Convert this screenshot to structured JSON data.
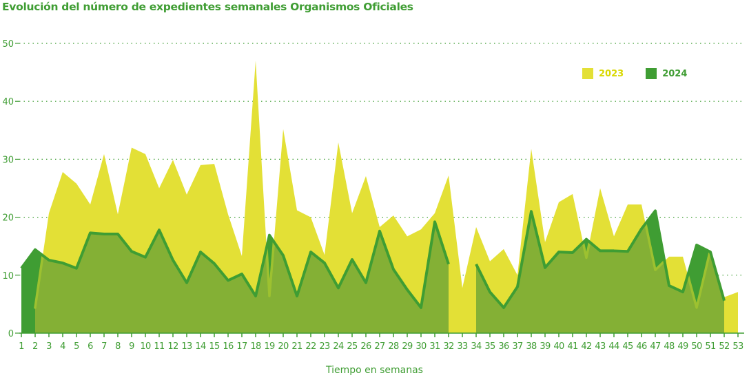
{
  "title": "Evolución del número de expedientes semanales  Organismos Oficiales",
  "colors": {
    "y2023": "#e3e036",
    "y2024": "#3f9d33",
    "overlap": "#84b035",
    "text": "#3f9d33",
    "legend2023_text": "#d9d800"
  },
  "legend": [
    {
      "label": "2023",
      "color": "#e3e036",
      "text_color": "#d9d800"
    },
    {
      "label": "2024",
      "color": "#3f9d33",
      "text_color": "#3f9d33"
    }
  ],
  "chart_data": {
    "type": "area",
    "title": "Evolución del número de expedientes semanales  Organismos Oficiales",
    "xlabel": "Tiempo en semanas",
    "ylabel": "",
    "ylim": [
      0,
      50
    ],
    "yticks": [
      0,
      10,
      20,
      30,
      40,
      50
    ],
    "grid": "horizontal dotted",
    "legend_position": "top-right",
    "x": [
      1,
      2,
      3,
      4,
      5,
      6,
      7,
      8,
      9,
      10,
      11,
      12,
      13,
      14,
      15,
      16,
      17,
      18,
      19,
      20,
      21,
      22,
      23,
      24,
      25,
      26,
      27,
      28,
      29,
      30,
      31,
      32,
      33,
      34,
      35,
      36,
      37,
      38,
      39,
      40,
      41,
      42,
      43,
      44,
      45,
      46,
      47,
      48,
      49,
      50,
      51,
      52,
      53
    ],
    "series": [
      {
        "name": "2023",
        "values": [
          null,
          4.4,
          20.7,
          27.8,
          25.8,
          22.2,
          30.9,
          20.5,
          32,
          30.9,
          25,
          29.9,
          23.9,
          29,
          29.2,
          20.5,
          13.3,
          47,
          6.4,
          35.2,
          21.2,
          20,
          13.5,
          32.9,
          20.7,
          27.1,
          18.3,
          20.3,
          16.7,
          17.9,
          20.7,
          27.2,
          7.8,
          18.3,
          12.4,
          14.5,
          10,
          31.8,
          15.7,
          22.6,
          24,
          13,
          25,
          16.7,
          22.2,
          22.2,
          10.9,
          13.2,
          13.2,
          4.4,
          14.4,
          6.2,
          7.1
        ]
      },
      {
        "name": "2024",
        "values": [
          11.2,
          14.4,
          12.6,
          12.1,
          11.2,
          17.3,
          17.1,
          17.1,
          14.1,
          13.1,
          17.8,
          12.6,
          8.7,
          14,
          12,
          9.1,
          10.2,
          6.4,
          16.9,
          13.4,
          6.4,
          14,
          12.1,
          7.8,
          12.7,
          8.7,
          17.6,
          11,
          7.5,
          4.4,
          19.2,
          11.9,
          null,
          11.9,
          7.1,
          4.4,
          8,
          21,
          11.3,
          14,
          13.9,
          16.2,
          14.2,
          14.2,
          14.1,
          18,
          21.1,
          8.2,
          7.1,
          15.2,
          14,
          5.6,
          null
        ]
      }
    ]
  }
}
